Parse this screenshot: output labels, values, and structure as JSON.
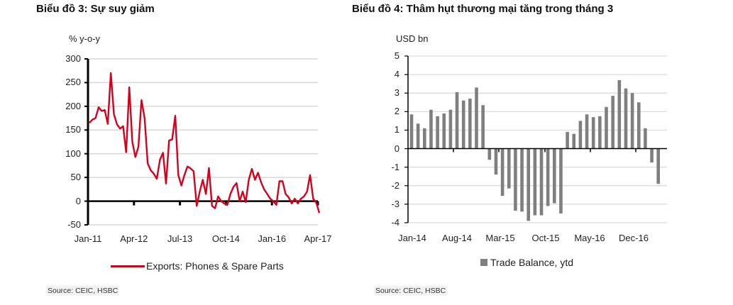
{
  "chart_data": [
    {
      "type": "line",
      "title": "Biểu đồ 3: Sự suy giảm",
      "ylabel": "% y-o-y",
      "xlabel": "",
      "ylim": [
        -50,
        300
      ],
      "yticks": [
        300,
        250,
        200,
        150,
        100,
        50,
        0,
        -50
      ],
      "xtick_labels": [
        "Jan-11",
        "Apr-12",
        "Jul-13",
        "Oct-14",
        "Jan-16",
        "Apr-17"
      ],
      "grid": true,
      "legend_position": "bottom",
      "series": [
        {
          "name": "Exports: Phones & Spare Parts",
          "color": "#d6001c",
          "x_start": "Jan-11",
          "frequency": "monthly",
          "values": [
            165,
            172,
            175,
            198,
            190,
            192,
            163,
            270,
            183,
            162,
            153,
            158,
            103,
            240,
            125,
            93,
            115,
            213,
            175,
            80,
            65,
            58,
            47,
            87,
            102,
            37,
            128,
            130,
            180,
            55,
            33,
            55,
            73,
            69,
            63,
            -10,
            20,
            45,
            15,
            70,
            -10,
            -15,
            10,
            0,
            -5,
            -8,
            15,
            30,
            38,
            0,
            20,
            -2,
            45,
            68,
            45,
            60,
            40,
            25,
            15,
            5,
            0,
            -8,
            42,
            42,
            15,
            8,
            -5,
            5,
            -5,
            5,
            10,
            20,
            55,
            5,
            -3,
            -25
          ]
        }
      ],
      "source": "Source: CEIC, HSBC"
    },
    {
      "type": "bar",
      "title": "Biểu đồ 4: Thâm hụt thương mại tăng trong tháng 3",
      "ylabel": "USD bn",
      "xlabel": "",
      "ylim": [
        -4,
        5
      ],
      "yticks": [
        5,
        4,
        3,
        2,
        1,
        0,
        -1,
        -2,
        -3,
        -4
      ],
      "xtick_labels": [
        "Jan-14",
        "Aug-14",
        "Mar-15",
        "Oct-15",
        "May-16",
        "Dec-16"
      ],
      "grid": true,
      "legend_position": "bottom",
      "categories": [
        "Jan-14",
        "Feb-14",
        "Mar-14",
        "Apr-14",
        "May-14",
        "Jun-14",
        "Jul-14",
        "Aug-14",
        "Sep-14",
        "Oct-14",
        "Nov-14",
        "Dec-14",
        "Jan-15",
        "Feb-15",
        "Mar-15",
        "Apr-15",
        "May-15",
        "Jun-15",
        "Jul-15",
        "Aug-15",
        "Sep-15",
        "Oct-15",
        "Nov-15",
        "Dec-15",
        "Jan-16",
        "Feb-16",
        "Mar-16",
        "Apr-16",
        "May-16",
        "Jun-16",
        "Jul-16",
        "Aug-16",
        "Sep-16",
        "Oct-16",
        "Nov-16",
        "Dec-16",
        "Jan-17",
        "Feb-17",
        "Mar-17"
      ],
      "series": [
        {
          "name": "Trade Balance, ytd",
          "color": "#7f7f7f",
          "values": [
            1.85,
            1.35,
            1.1,
            2.1,
            1.75,
            1.9,
            2.1,
            3.05,
            2.6,
            2.7,
            3.3,
            2.35,
            -0.6,
            -1.4,
            -2.55,
            -2.15,
            -3.35,
            -3.4,
            -3.9,
            -3.6,
            -3.6,
            -3.1,
            -2.95,
            -3.5,
            0.9,
            0.8,
            1.5,
            1.85,
            1.7,
            1.75,
            2.25,
            2.85,
            3.7,
            3.25,
            3.0,
            2.5,
            1.1,
            -0.75,
            -1.9
          ]
        }
      ],
      "source": "Source: CEIC, HSBC"
    }
  ],
  "colors": {
    "line": "#d6001c",
    "bar": "#7f7f7f",
    "grid": "#d9d9d9",
    "axis": "#000000"
  }
}
